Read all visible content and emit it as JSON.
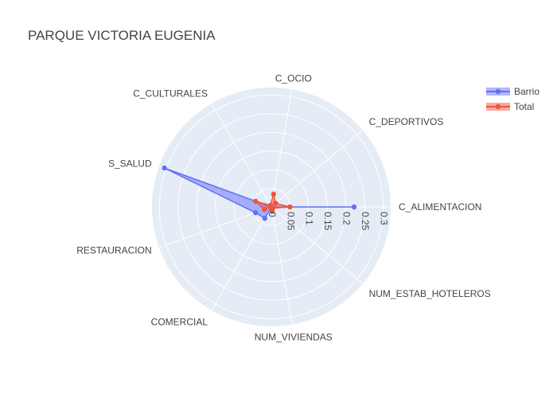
{
  "chart_data": {
    "type": "radar",
    "title": "PARQUE VICTORIA EUGENIA",
    "categories": [
      "C_ALIMENTACION",
      "C_DEPORTIVOS",
      "C_OCIO",
      "C_CULTURALES",
      "S_SALUD",
      "RESTAURACION",
      "COMERCIAL",
      "NUM_VIVIENDAS",
      "NUM_ESTAB_HOTELEROS"
    ],
    "radial_ticks": [
      "0",
      "0.05",
      "0.1",
      "0.15",
      "0.2",
      "0.25",
      "0.3"
    ],
    "radial_range": [
      0,
      0.32
    ],
    "series": [
      {
        "name": "Barrio",
        "color": "#636efa",
        "values": [
          0.222,
          0.0,
          0.0,
          0.0,
          0.305,
          0.045,
          0.035,
          0.0,
          0.0
        ]
      },
      {
        "name": "Total",
        "color": "#ef553b",
        "values": [
          0.05,
          0.015,
          0.035,
          0.005,
          0.045,
          0.02,
          0.0,
          0.012,
          0.005
        ]
      }
    ],
    "legend_position": "top-right",
    "grid": true,
    "background": "#e5ecf6"
  }
}
